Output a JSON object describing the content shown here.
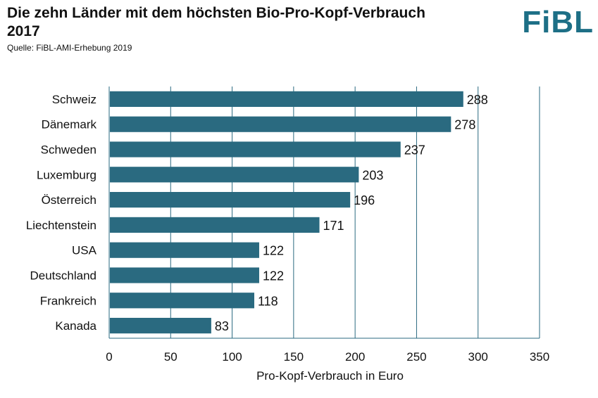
{
  "header": {
    "title": "Die zehn Länder mit dem höchsten Bio-Pro-Kopf-Verbrauch 2017",
    "source": "Quelle: FiBL-AMI-Erhebung 2019",
    "logo": "FiBL"
  },
  "colors": {
    "bar": "#2a6a80",
    "grid": "#2a6a80",
    "logo": "#1d6f86"
  },
  "chart_data": {
    "type": "bar",
    "orientation": "horizontal",
    "title": "Die zehn Länder mit dem höchsten Bio-Pro-Kopf-Verbrauch 2017",
    "xlabel": "Pro-Kopf-Verbrauch in Euro",
    "ylabel": "",
    "xlim": [
      0,
      350
    ],
    "xticks": [
      0,
      50,
      100,
      150,
      200,
      250,
      300,
      350
    ],
    "grid": "vertical",
    "categories": [
      "Schweiz",
      "Dänemark",
      "Schweden",
      "Luxemburg",
      "Österreich",
      "Liechtenstein",
      "USA",
      "Deutschland",
      "Frankreich",
      "Kanada"
    ],
    "values": [
      288,
      278,
      237,
      203,
      196,
      171,
      122,
      122,
      118,
      83
    ]
  }
}
